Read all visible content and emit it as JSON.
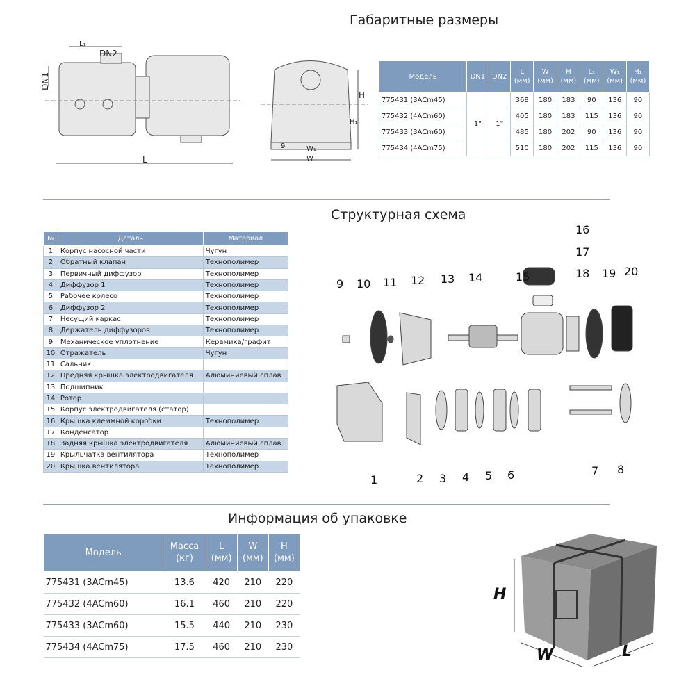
{
  "sections": {
    "dimensions": "Габаритные размеры",
    "structure": "Структурная схема",
    "packaging": "Информация об упаковке"
  },
  "drawing_labels": {
    "l1": "L₁",
    "dn2": "DN2",
    "dn1": "DN1",
    "l": "L",
    "h": "H",
    "h1": "H₁",
    "w1": "W₁",
    "w": "W",
    "nine": "9"
  },
  "dim_table": {
    "headers": [
      "Модель",
      "DN1",
      "DN2",
      "L\n(мм)",
      "W\n(мм)",
      "H\n(мм)",
      "L₁\n(мм)",
      "W₁\n(мм)",
      "H₁\n(мм)"
    ],
    "dn1": "1\"",
    "dn2": "1\"",
    "rows": [
      {
        "model": "775431 (3ACm45)",
        "vals": [
          "368",
          "180",
          "183",
          "90",
          "136",
          "90"
        ]
      },
      {
        "model": "775432 (4ACm60)",
        "vals": [
          "405",
          "180",
          "183",
          "115",
          "136",
          "90"
        ]
      },
      {
        "model": "775433 (3ACm60)",
        "vals": [
          "485",
          "180",
          "202",
          "90",
          "136",
          "90"
        ]
      },
      {
        "model": "775434 (4ACm75)",
        "vals": [
          "510",
          "180",
          "202",
          "115",
          "136",
          "90"
        ]
      }
    ]
  },
  "parts_table": {
    "headers": [
      "№",
      "Деталь",
      "Материал"
    ],
    "rows": [
      [
        "1",
        "Корпус насосной части",
        "Чугун"
      ],
      [
        "2",
        "Обратный клапан",
        "Технополимер"
      ],
      [
        "3",
        "Первичный диффузор",
        "Технополимер"
      ],
      [
        "4",
        "Диффузор 1",
        "Технополимер"
      ],
      [
        "5",
        "Рабочее колесо",
        "Технополимер"
      ],
      [
        "6",
        "Диффузор 2",
        "Технополимер"
      ],
      [
        "7",
        "Несущий каркас",
        "Технополимер"
      ],
      [
        "8",
        "Держатель диффузоров",
        "Технополимер"
      ],
      [
        "9",
        "Механическое уплотнение",
        "Керамика/графит"
      ],
      [
        "10",
        "Отражатель",
        "Чугун"
      ],
      [
        "11",
        "Сальник",
        ""
      ],
      [
        "12",
        "Предняя крышка электродвигателя",
        "Алюминиевый сплав"
      ],
      [
        "13",
        "Подшипник",
        ""
      ],
      [
        "14",
        "Ротор",
        ""
      ],
      [
        "15",
        "Корпус электродвигателя (статор)",
        ""
      ],
      [
        "16",
        "Крышка клеммной коробки",
        "Технополимер"
      ],
      [
        "17",
        "Конденсатор",
        ""
      ],
      [
        "18",
        "Задняя крышка электродвигателя",
        "Алюминиевый сплав"
      ],
      [
        "19",
        "Крыльчатка вентилятора",
        "Технополимер"
      ],
      [
        "20",
        "Крышка вентилятора",
        "Технополимер"
      ]
    ]
  },
  "exploded_numbers": [
    "1",
    "2",
    "3",
    "4",
    "5",
    "6",
    "7",
    "8",
    "9",
    "10",
    "11",
    "12",
    "13",
    "14",
    "15",
    "16",
    "17",
    "18",
    "19",
    "20"
  ],
  "pack_table": {
    "headers": [
      "Модель",
      "Масса\n(кг)",
      "L\n(мм)",
      "W\n(мм)",
      "H\n(мм)"
    ],
    "rows": [
      [
        "775431 (3ACm45)",
        "13.6",
        "420",
        "210",
        "220"
      ],
      [
        "775432 (4ACm60)",
        "16.1",
        "460",
        "210",
        "220"
      ],
      [
        "775433 (3ACm60)",
        "15.5",
        "440",
        "210",
        "230"
      ],
      [
        "775434 (4ACm75)",
        "17.5",
        "460",
        "210",
        "230"
      ]
    ]
  },
  "box_labels": {
    "h": "H",
    "w": "W",
    "l": "L"
  },
  "colors": {
    "header": "#7f9cbf",
    "alt_row": "#c7d6e6"
  }
}
